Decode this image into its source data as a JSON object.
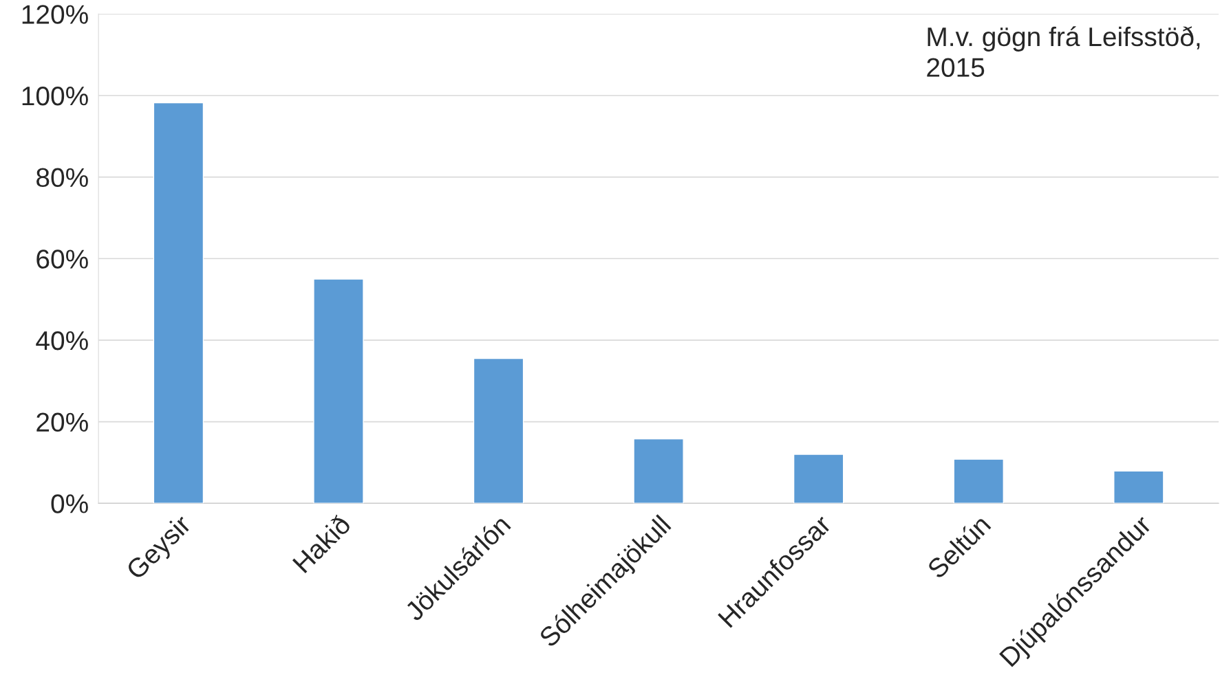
{
  "chart_data": {
    "type": "bar",
    "categories": [
      "Geysir",
      "Hakið",
      "Jökulsárlón",
      "Sólheimajökull",
      "Hraunfossar",
      "Seltún",
      "Djúpalónssandur"
    ],
    "values": [
      98.2,
      55,
      35.5,
      15.8,
      12,
      10.8,
      7.9
    ],
    "color": "#5b9bd5",
    "ylim": [
      0,
      120
    ],
    "yticks": [
      {
        "value": 0,
        "label": "0%"
      },
      {
        "value": 20,
        "label": "20%"
      },
      {
        "value": 40,
        "label": "40%"
      },
      {
        "value": 60,
        "label": "60%"
      },
      {
        "value": 80,
        "label": "80%"
      },
      {
        "value": 100,
        "label": "100%"
      },
      {
        "value": 120,
        "label": "120%"
      }
    ],
    "grid": "y",
    "legend": false,
    "annotations": [
      "M.v. gögn frá Leifsstöð,\n2015"
    ]
  }
}
